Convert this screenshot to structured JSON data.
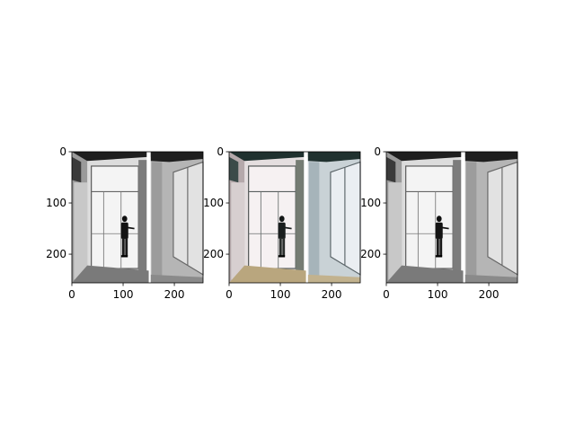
{
  "chart_data": [
    {
      "type": "image",
      "variant": "grayscale",
      "title": "",
      "xlabel": "",
      "ylabel": "",
      "xlim": [
        0,
        256
      ],
      "ylim": [
        256,
        0
      ],
      "x_ticks": [
        0,
        100,
        200
      ],
      "y_ticks": [
        0,
        100,
        200
      ]
    },
    {
      "type": "image",
      "variant": "color",
      "title": "",
      "xlabel": "",
      "ylabel": "",
      "xlim": [
        0,
        256
      ],
      "ylim": [
        256,
        0
      ],
      "x_ticks": [
        0,
        100,
        200
      ],
      "y_ticks": [
        0,
        100,
        200
      ]
    },
    {
      "type": "image",
      "variant": "grayscale",
      "title": "",
      "xlabel": "",
      "ylabel": "",
      "xlim": [
        0,
        256
      ],
      "ylim": [
        256,
        0
      ],
      "x_ticks": [
        0,
        100,
        200
      ],
      "y_ticks": [
        0,
        100,
        200
      ]
    }
  ],
  "colors": {
    "gray_bg": "#e6e6e6",
    "gray_dark": "#2a2a2a",
    "color_bg": "#e9e2e4",
    "color_dark": "#20312f",
    "floor_color": "#b9a67e"
  }
}
